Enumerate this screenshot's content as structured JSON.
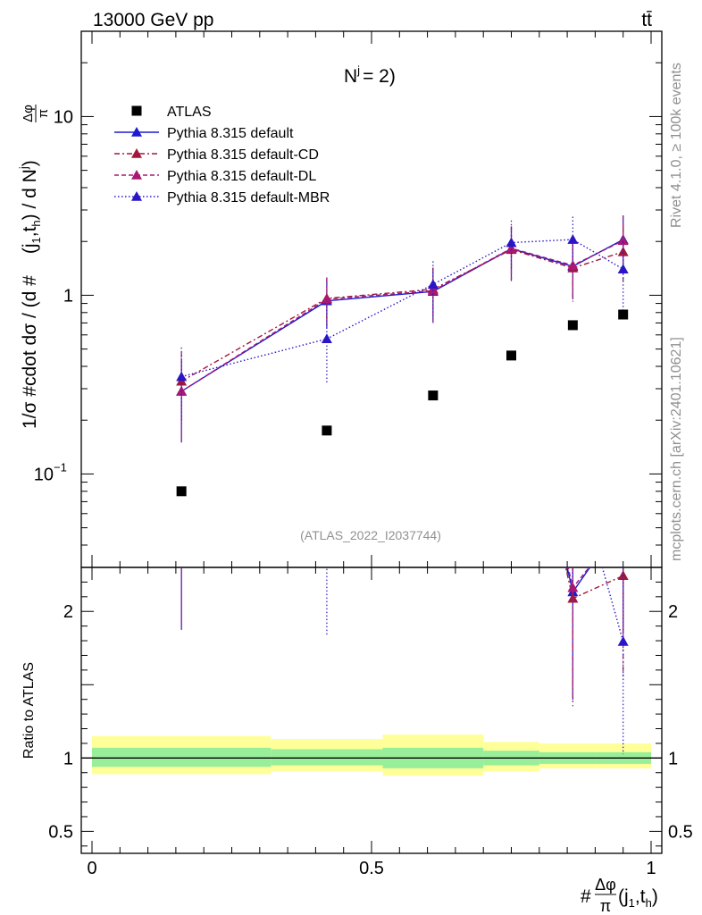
{
  "header": {
    "energy_label": "13000 GeV pp",
    "process_label": "tt̄"
  },
  "side_labels": {
    "rivet": "Rivet 4.1.0, ≥ 100k events",
    "mcplots": "mcplots.cern.ch [arXiv:2401.10621]"
  },
  "chart_data": {
    "type": "line",
    "title": "N^j = 2)",
    "analysis_tag": "(ATLAS_2022_I2037744)",
    "ylabel_main": "1/σ #cdot dσ / (d #Δφ/π(j1,th) / d Nj)",
    "ylabel_parts": {
      "prefix": "1/σ #cdot dσ / (d #",
      "frac_num": "Δφ",
      "frac_den": "π",
      "args": "(j",
      "sub1": "1",
      "comma": ",t",
      "sub2": "h",
      "mid": ") / d N",
      "sup": "j",
      "end": ")"
    },
    "ylabel_ratio": "Ratio to ATLAS",
    "xlabel_parts": {
      "hash": "#",
      "frac_num": "Δφ",
      "frac_den": "π",
      "open": "(j",
      "sub1": "1",
      "comma": ",t",
      "sub2": "h",
      "close": ")"
    },
    "xlim": [
      0,
      1
    ],
    "ylim_main": [
      0.03,
      30
    ],
    "ylim_ratio": [
      0.35,
      2.3
    ],
    "x_ticks": [
      {
        "v": 0,
        "label": "0"
      },
      {
        "v": 0.5,
        "label": "0.5"
      },
      {
        "v": 1,
        "label": "1"
      }
    ],
    "y_ticks_main": [
      {
        "v": 0.1,
        "label": "10",
        "exp": "−1"
      },
      {
        "v": 1,
        "label": "1",
        "exp": ""
      },
      {
        "v": 10,
        "label": "10",
        "exp": ""
      }
    ],
    "y_ticks_ratio": [
      {
        "v": 0.5,
        "label": "0.5"
      },
      {
        "v": 1,
        "label": "1"
      },
      {
        "v": 2,
        "label": "2"
      }
    ],
    "bins": [
      {
        "lo": 0.0,
        "hi": 0.32,
        "x": 0.16
      },
      {
        "lo": 0.32,
        "hi": 0.52,
        "x": 0.42
      },
      {
        "lo": 0.52,
        "hi": 0.7,
        "x": 0.61
      },
      {
        "lo": 0.7,
        "hi": 0.8,
        "x": 0.75
      },
      {
        "lo": 0.8,
        "hi": 0.9,
        "x": 0.86
      },
      {
        "lo": 0.9,
        "hi": 1.0,
        "x": 0.95
      }
    ],
    "data_series": {
      "name": "ATLAS",
      "values": [
        0.08,
        0.175,
        0.275,
        0.46,
        0.68,
        0.78
      ]
    },
    "ratio_bands": {
      "stat_lo": [
        0.94,
        0.95,
        0.93,
        0.95,
        0.96,
        0.96
      ],
      "stat_hi": [
        1.07,
        1.06,
        1.07,
        1.05,
        1.04,
        1.04
      ],
      "tot_lo": [
        0.89,
        0.91,
        0.88,
        0.91,
        0.93,
        0.93
      ],
      "tot_hi": [
        1.15,
        1.13,
        1.16,
        1.11,
        1.1,
        1.1
      ]
    },
    "mc_series": [
      {
        "name": "Pythia 8.315 default",
        "color": "#1b1bd1",
        "dash": "",
        "values": [
          0.29,
          0.93,
          1.05,
          1.82,
          1.45,
          2.05
        ],
        "err_lo": [
          0.14,
          0.28,
          0.35,
          0.6,
          0.5,
          0.6
        ],
        "err_hi": [
          0.15,
          0.3,
          0.35,
          0.6,
          0.55,
          0.75
        ]
      },
      {
        "name": "Pythia 8.315 default-CD",
        "color": "#a0183c",
        "dash": "6,3,2,3",
        "values": [
          0.33,
          0.96,
          1.08,
          1.8,
          1.42,
          1.75
        ],
        "err_lo": [
          0.14,
          0.28,
          0.35,
          0.6,
          0.5,
          0.55
        ],
        "err_hi": [
          0.15,
          0.3,
          0.35,
          0.6,
          0.55,
          0.65
        ]
      },
      {
        "name": "Pythia 8.315 default-DL",
        "color": "#a81874",
        "dash": "5,3",
        "values": [
          0.29,
          0.95,
          1.06,
          1.83,
          1.47,
          2.02
        ],
        "err_lo": [
          0.14,
          0.28,
          0.35,
          0.6,
          0.5,
          0.6
        ],
        "err_hi": [
          0.15,
          0.3,
          0.35,
          0.6,
          0.55,
          0.75
        ]
      },
      {
        "name": "Pythia 8.315 default-MBR",
        "color": "#2a16c6",
        "dash": "1.5,2.5",
        "values": [
          0.35,
          0.57,
          1.15,
          1.97,
          2.05,
          1.4
        ],
        "err_lo": [
          0.15,
          0.25,
          0.4,
          0.6,
          0.55,
          0.6
        ],
        "err_hi": [
          0.16,
          0.3,
          0.4,
          0.65,
          0.7,
          0.6
        ]
      }
    ],
    "legend_placement": "top-left"
  }
}
